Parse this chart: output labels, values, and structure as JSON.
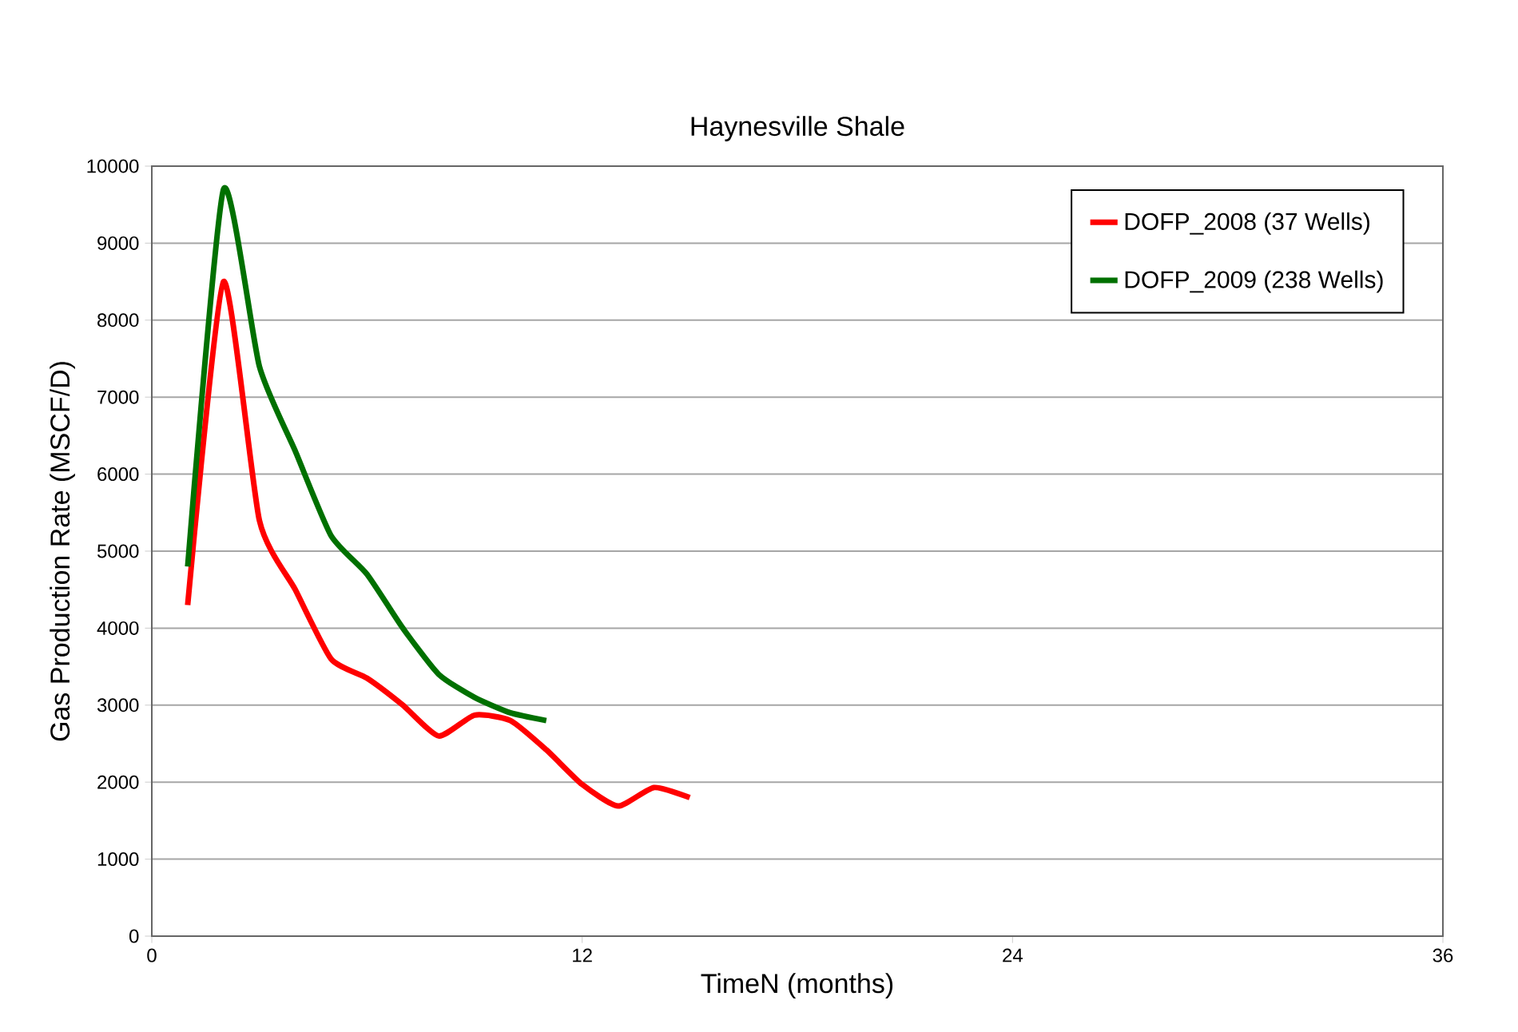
{
  "chart_data": {
    "type": "line",
    "title": "Haynesville Shale",
    "xlabel": "TimeN (months)",
    "ylabel": "Gas Production Rate (MSCF/D)",
    "xlim": [
      0,
      36
    ],
    "xticks": [
      0,
      12,
      24,
      36
    ],
    "ylim": [
      0,
      10000
    ],
    "yticks": [
      0,
      1000,
      2000,
      3000,
      4000,
      5000,
      6000,
      7000,
      8000,
      9000,
      10000
    ],
    "grid": "y",
    "legend": "top right",
    "marker": "none",
    "line_style": "solid",
    "series": [
      {
        "name": "DOFP_2008 (37 Wells)",
        "color": "#ff0000",
        "x": [
          1,
          2,
          3,
          4,
          5,
          6,
          7,
          8,
          9,
          10,
          11,
          12,
          13,
          14,
          15
        ],
        "values": [
          4300,
          8500,
          5400,
          4500,
          3600,
          3350,
          3000,
          2600,
          2870,
          2800,
          2420,
          1970,
          1690,
          1930,
          1800
        ]
      },
      {
        "name": "DOFP_2009 (238 Wells)",
        "color": "#007000",
        "x": [
          1,
          2,
          3,
          4,
          5,
          6,
          7,
          8,
          9,
          10,
          11
        ],
        "values": [
          4800,
          9700,
          7400,
          6300,
          5200,
          4700,
          4000,
          3400,
          3100,
          2900,
          2800
        ]
      }
    ]
  }
}
